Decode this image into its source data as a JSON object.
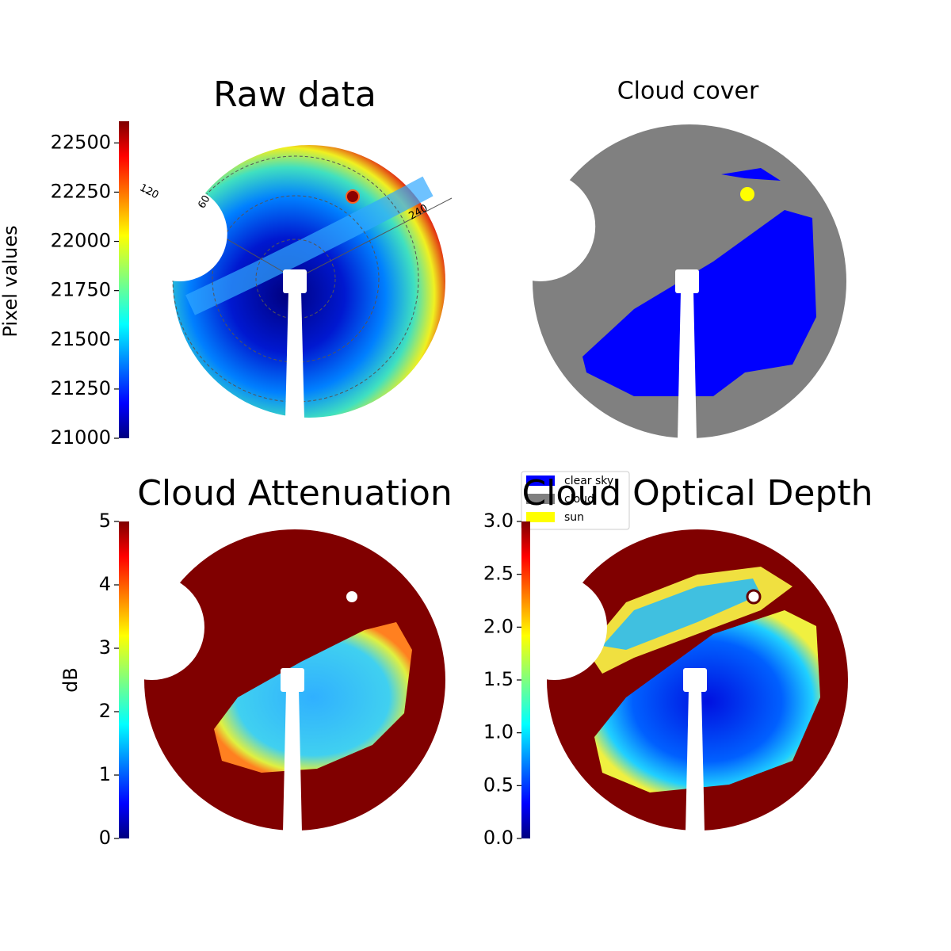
{
  "chart_data": [
    {
      "type": "image",
      "title": "Raw data",
      "colorbar_label": "Pixel values",
      "colormap": "jet",
      "ylim": [
        21000,
        22610
      ],
      "yticks": [
        21000,
        21250,
        21500,
        21750,
        22000,
        22250,
        22500
      ],
      "annotations": [
        "120",
        "60",
        "240"
      ]
    },
    {
      "type": "image",
      "title": "Cloud cover",
      "series": [
        {
          "name": "clear sky",
          "color": "#0000ff"
        },
        {
          "name": "cloud",
          "color": "#808080"
        },
        {
          "name": "sun",
          "color": "#ffff00"
        }
      ]
    },
    {
      "type": "image",
      "title": "Cloud Attenuation",
      "colorbar_label": "dB",
      "colormap": "jet",
      "ylim": [
        0,
        5
      ],
      "yticks": [
        0,
        1,
        2,
        3,
        4,
        5
      ]
    },
    {
      "type": "image",
      "title": "Cloud Optical Depth",
      "colormap": "jet",
      "ylim": [
        0,
        3
      ],
      "yticks": [
        {
          "value": 0,
          "label": "0.0"
        },
        {
          "value": 0.5,
          "label": "0.5"
        },
        {
          "value": 1,
          "label": "1.0"
        },
        {
          "value": 1.5,
          "label": "1.5"
        },
        {
          "value": 2,
          "label": "2.0"
        },
        {
          "value": 2.5,
          "label": "2.5"
        },
        {
          "value": 3,
          "label": "3.0"
        }
      ]
    }
  ]
}
